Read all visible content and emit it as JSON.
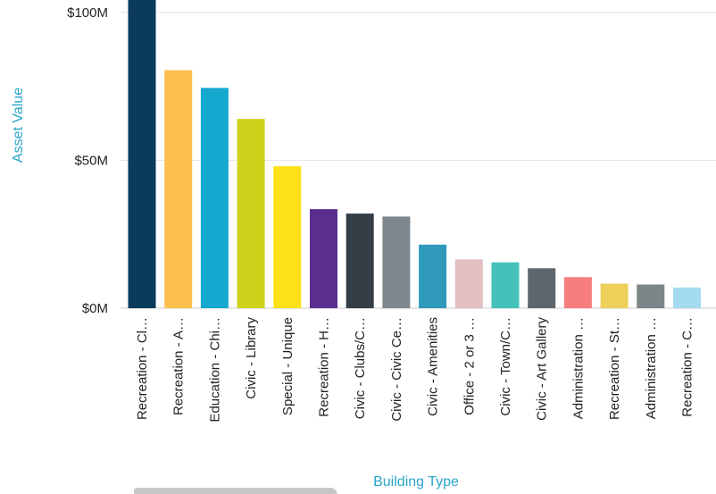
{
  "chart_data": {
    "type": "bar",
    "xlabel": "Building Type",
    "ylabel": "Asset Value",
    "ylim": [
      0,
      100
    ],
    "y_ticks": [
      {
        "value": 0,
        "label": "$0M"
      },
      {
        "value": 50,
        "label": "$50M"
      },
      {
        "value": 100,
        "label": "$100M"
      }
    ],
    "grid": true,
    "legend": "none",
    "axis_title_color": "#2aa5c8",
    "categories": [
      "Recreation - Cl…",
      "Recreation - A…",
      "Education - Chi…",
      "Civic - Library",
      "Special - Unique",
      "Recreation - H…",
      "Civic - Clubs/C…",
      "Civic - Civic Ce…",
      "Civic - Amenities",
      "Office - 2 or 3 …",
      "Civic - Town/C…",
      "Civic - Art Gallery",
      "Administration …",
      "Recreation - St…",
      "Administration …",
      "Recreation - C…"
    ],
    "values": [
      106,
      80.5,
      74.5,
      64,
      48,
      33.5,
      32,
      31,
      21.5,
      16.5,
      15.5,
      13.5,
      10.5,
      8.3,
      8,
      7
    ],
    "colors": [
      "#0b3b5c",
      "#fbc04e",
      "#16a9cf",
      "#cfd21a",
      "#fbe115",
      "#5a2e8e",
      "#343c45",
      "#7e878d",
      "#2f9ab9",
      "#e2bfc3",
      "#44c2b9",
      "#5c666b",
      "#f87d7d",
      "#efd05b",
      "#7d8487",
      "#a5dbf0"
    ]
  }
}
